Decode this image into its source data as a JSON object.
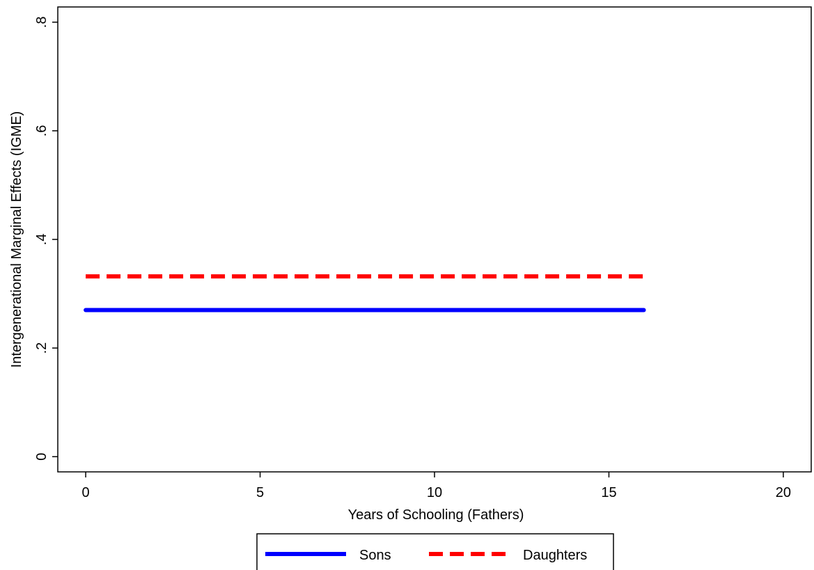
{
  "chart_data": {
    "type": "line",
    "title": "",
    "xlabel": "Years of Schooling (Fathers)",
    "ylabel": "Intergenerational Marginal Effects (IGME)",
    "xlim": [
      -0.8,
      20.8
    ],
    "ylim": [
      -0.028,
      0.828
    ],
    "xticks": [
      0,
      5,
      10,
      15,
      20
    ],
    "xtick_labels": [
      "0",
      "5",
      "10",
      "15",
      "20"
    ],
    "yticks": [
      0,
      0.2,
      0.4,
      0.6,
      0.8
    ],
    "ytick_labels": [
      "0",
      ".2",
      ".4",
      ".6",
      ".8"
    ],
    "grid": false,
    "legend_position": "bottom",
    "series": [
      {
        "name": "Sons",
        "x": [
          0,
          16
        ],
        "y": [
          0.27,
          0.27
        ],
        "color": "#0000ff",
        "style": "solid"
      },
      {
        "name": "Daughters",
        "x": [
          0,
          16
        ],
        "y": [
          0.332,
          0.332
        ],
        "color": "#ff0000",
        "style": "dashed"
      }
    ]
  }
}
